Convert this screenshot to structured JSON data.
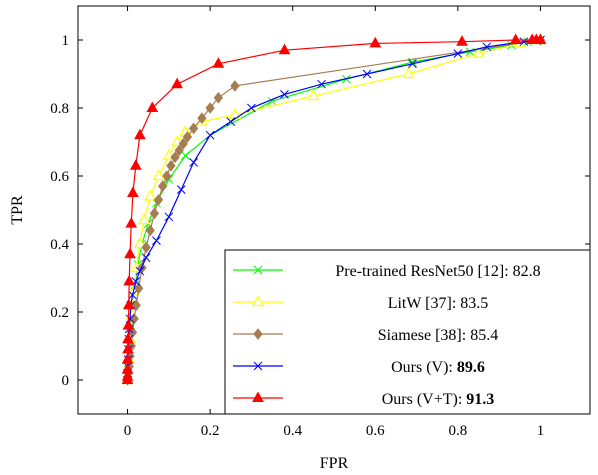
{
  "chart_data": {
    "type": "line",
    "title": "",
    "xlabel": "FPR",
    "ylabel": "TPR",
    "xlim": [
      -0.12,
      1.12
    ],
    "ylim": [
      -0.1,
      1.1
    ],
    "xticks": [
      0,
      0.2,
      0.4,
      0.6,
      0.8,
      1
    ],
    "xtick_labels": [
      "0",
      "0.2",
      "0.4",
      "0.6",
      "0.8",
      "1"
    ],
    "yticks": [
      0,
      0.2,
      0.4,
      0.6,
      0.8,
      1
    ],
    "ytick_labels": [
      "0",
      "0.2",
      "0.4",
      "0.6",
      "0.8",
      "1"
    ],
    "grid": false,
    "legend_position": "bottom-right",
    "series": [
      {
        "name": "Pre-trained ResNet50 [12]: 82.8",
        "legend_plain": "Pre-trained ResNet50 [12]: 82.8",
        "legend_bold": "",
        "color": "#00ff00",
        "marker": "x",
        "x": [
          0,
          0.002,
          0.005,
          0.008,
          0.012,
          0.018,
          0.025,
          0.035,
          0.05,
          0.07,
          0.1,
          0.14,
          0.2,
          0.35,
          0.53,
          0.69,
          0.83,
          0.93,
          0.97,
          1
        ],
        "y": [
          0,
          0.05,
          0.1,
          0.16,
          0.22,
          0.28,
          0.34,
          0.4,
          0.46,
          0.52,
          0.59,
          0.66,
          0.72,
          0.82,
          0.885,
          0.935,
          0.965,
          0.985,
          0.995,
          1
        ]
      },
      {
        "name": "LitW [37]: 83.5",
        "legend_plain": "LitW [37]: 83.5",
        "legend_bold": "",
        "color": "#ffff00",
        "marker": "triangle-open",
        "x": [
          0,
          0.003,
          0.006,
          0.01,
          0.015,
          0.022,
          0.03,
          0.04,
          0.055,
          0.075,
          0.1,
          0.12,
          0.14,
          0.18,
          0.26,
          0.45,
          0.68,
          0.85,
          0.95,
          1
        ],
        "y": [
          0,
          0.06,
          0.12,
          0.19,
          0.26,
          0.33,
          0.4,
          0.47,
          0.54,
          0.6,
          0.66,
          0.7,
          0.73,
          0.76,
          0.78,
          0.835,
          0.9,
          0.96,
          0.99,
          1
        ]
      },
      {
        "name": "Siamese [38]: 85.4",
        "legend_plain": "Siamese [38]: 85.4",
        "legend_bold": "",
        "color": "#a67c52",
        "marker": "diamond",
        "x": [
          0,
          0.002,
          0.004,
          0.006,
          0.009,
          0.012,
          0.016,
          0.021,
          0.027,
          0.035,
          0.045,
          0.055,
          0.065,
          0.075,
          0.085,
          0.095,
          0.105,
          0.115,
          0.125,
          0.135,
          0.145,
          0.16,
          0.18,
          0.2,
          0.22,
          0.26,
          1
        ],
        "y": [
          0,
          0.02,
          0.04,
          0.07,
          0.1,
          0.14,
          0.18,
          0.22,
          0.27,
          0.33,
          0.39,
          0.44,
          0.49,
          0.53,
          0.57,
          0.6,
          0.63,
          0.655,
          0.675,
          0.695,
          0.715,
          0.74,
          0.77,
          0.8,
          0.83,
          0.865,
          1
        ]
      },
      {
        "name": "Ours (V): 89.6",
        "legend_plain": "Ours (V): ",
        "legend_bold": "89.6",
        "color": "#0000ff",
        "marker": "x",
        "x": [
          0,
          0,
          0,
          0.001,
          0.002,
          0.003,
          0.004,
          0.006,
          0.008,
          0.012,
          0.02,
          0.03,
          0.045,
          0.07,
          0.1,
          0.13,
          0.16,
          0.2,
          0.25,
          0.3,
          0.38,
          0.47,
          0.58,
          0.69,
          0.8,
          0.87,
          0.96,
          1
        ],
        "y": [
          0,
          0.02,
          0.04,
          0.06,
          0.09,
          0.12,
          0.15,
          0.18,
          0.22,
          0.25,
          0.29,
          0.32,
          0.36,
          0.41,
          0.48,
          0.56,
          0.64,
          0.72,
          0.76,
          0.8,
          0.84,
          0.87,
          0.9,
          0.93,
          0.96,
          0.98,
          0.995,
          1
        ]
      },
      {
        "name": "Ours (V+T): 91.3",
        "legend_plain": "Ours (V+T): ",
        "legend_bold": "91.3",
        "color": "#ff0000",
        "marker": "triangle",
        "x": [
          0,
          0,
          0,
          0,
          0.001,
          0.001,
          0.002,
          0.003,
          0.004,
          0.006,
          0.009,
          0.013,
          0.02,
          0.03,
          0.06,
          0.12,
          0.22,
          0.38,
          0.6,
          0.81,
          0.94,
          0.98,
          0.99,
          1
        ],
        "y": [
          0,
          0.01,
          0.03,
          0.06,
          0.09,
          0.12,
          0.16,
          0.22,
          0.29,
          0.37,
          0.46,
          0.55,
          0.63,
          0.72,
          0.8,
          0.87,
          0.93,
          0.97,
          0.99,
          0.995,
          1,
          1,
          1,
          1
        ]
      }
    ]
  }
}
